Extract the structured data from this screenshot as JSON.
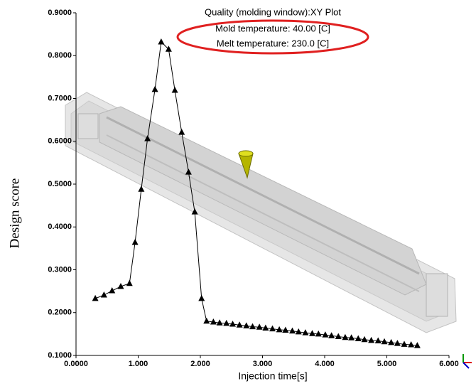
{
  "chart_data": {
    "type": "line",
    "title": "Quality (molding window):XY Plot",
    "annotations": [
      "Mold temperature: 40.00 [C]",
      "Melt temperature: 230.0 [C]"
    ],
    "x_label": "Injection time[s]",
    "y_label": "Design score",
    "color": "#000000",
    "marker": "triangle",
    "x": [
      0.31,
      0.45,
      0.58,
      0.72,
      0.86,
      0.95,
      1.05,
      1.15,
      1.27,
      1.37,
      1.49,
      1.59,
      1.7,
      1.81,
      1.91,
      2.02,
      2.1,
      2.21,
      2.31,
      2.42,
      2.52,
      2.63,
      2.74,
      2.84,
      2.95,
      3.05,
      3.16,
      3.27,
      3.37,
      3.48,
      3.58,
      3.69,
      3.8,
      3.9,
      4.01,
      4.11,
      4.22,
      4.33,
      4.43,
      4.54,
      4.64,
      4.75,
      4.86,
      4.96,
      5.07,
      5.17,
      5.28,
      5.39,
      5.49
    ],
    "values": [
      0.233,
      0.241,
      0.251,
      0.261,
      0.268,
      0.364,
      0.488,
      0.606,
      0.721,
      0.832,
      0.815,
      0.719,
      0.621,
      0.528,
      0.435,
      0.233,
      0.18,
      0.178,
      0.176,
      0.175,
      0.173,
      0.171,
      0.169,
      0.167,
      0.166,
      0.164,
      0.162,
      0.16,
      0.159,
      0.157,
      0.155,
      0.153,
      0.151,
      0.15,
      0.148,
      0.146,
      0.144,
      0.142,
      0.141,
      0.139,
      0.137,
      0.135,
      0.134,
      0.132,
      0.13,
      0.128,
      0.126,
      0.125,
      0.123
    ],
    "xlim": [
      0,
      6
    ],
    "ylim": [
      0.1,
      0.9
    ],
    "xticks": [
      {
        "value": 0,
        "label": "0.0000"
      },
      {
        "value": 1,
        "label": "1.000"
      },
      {
        "value": 2,
        "label": "2.000"
      },
      {
        "value": 3,
        "label": "3.000"
      },
      {
        "value": 4,
        "label": "4.000"
      },
      {
        "value": 5,
        "label": "5.000"
      },
      {
        "value": 6,
        "label": "6.000"
      }
    ],
    "yticks": [
      {
        "value": 0.1,
        "label": "0.1000"
      },
      {
        "value": 0.2,
        "label": "0.2000"
      },
      {
        "value": 0.3,
        "label": "0.3000"
      },
      {
        "value": 0.4,
        "label": "0.4000"
      },
      {
        "value": 0.5,
        "label": "0.5000"
      },
      {
        "value": 0.6,
        "label": "0.6000"
      },
      {
        "value": 0.7,
        "label": "0.7000"
      },
      {
        "value": 0.8,
        "label": "0.8000"
      },
      {
        "value": 0.9,
        "label": "0.9000"
      }
    ]
  }
}
